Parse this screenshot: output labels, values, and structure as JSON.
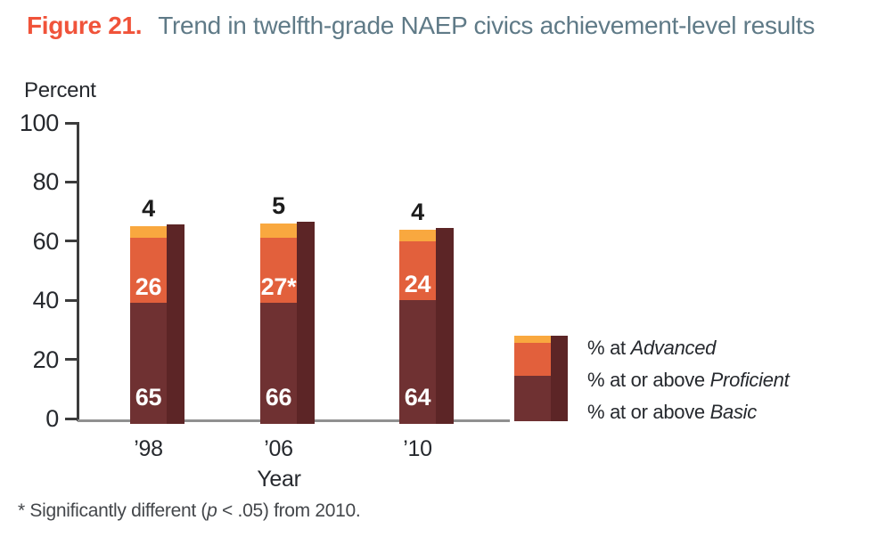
{
  "title": {
    "figure_label": "Figure 21.",
    "text": "Trend in twelfth-grade NAEP civics achievement-level results"
  },
  "chart_data": {
    "type": "bar",
    "subtype": "stacked-cumulative-achievement-levels",
    "title": "Trend in twelfth-grade NAEP civics achievement-level results",
    "ylabel": "Percent",
    "xlabel": "Year",
    "ylim": [
      0,
      100
    ],
    "yticks": [
      0,
      20,
      40,
      60,
      80,
      100
    ],
    "grid": false,
    "categories": [
      "’98",
      "’06",
      "’10"
    ],
    "series": [
      {
        "name": "% at or above Basic",
        "values": [
          65,
          66,
          64
        ],
        "labels": [
          "65",
          "66",
          "64"
        ],
        "color": "#6F3132"
      },
      {
        "name": "% at or above Proficient",
        "values": [
          26,
          27,
          24
        ],
        "labels": [
          "26",
          "27*",
          "24"
        ],
        "color": "#E2603C"
      },
      {
        "name": "% at Advanced",
        "values": [
          4,
          5,
          4
        ],
        "labels": [
          "4",
          "5",
          "4"
        ],
        "color": "#F9A83F"
      }
    ],
    "legend": {
      "position": "right",
      "entries": [
        {
          "prefix": "% at ",
          "term": "Advanced"
        },
        {
          "prefix": "% at or above ",
          "term": "Proficient"
        },
        {
          "prefix": "% at or above ",
          "term": "Basic"
        }
      ]
    }
  },
  "footnote": {
    "pre": "* Significantly different (",
    "italic_term": "p",
    "post": " < .05) from 2010."
  },
  "colors": {
    "figure_label": "#F0533A",
    "title": "#5F7A87",
    "text": "#26292E",
    "axis": "#3C3C3C",
    "baseline": "#909090",
    "bar_shadow": "#5C2526",
    "label_above_bar": "#1D1D1D",
    "label_on_bar": "#FFFFFF",
    "footnote": "#44474B"
  }
}
